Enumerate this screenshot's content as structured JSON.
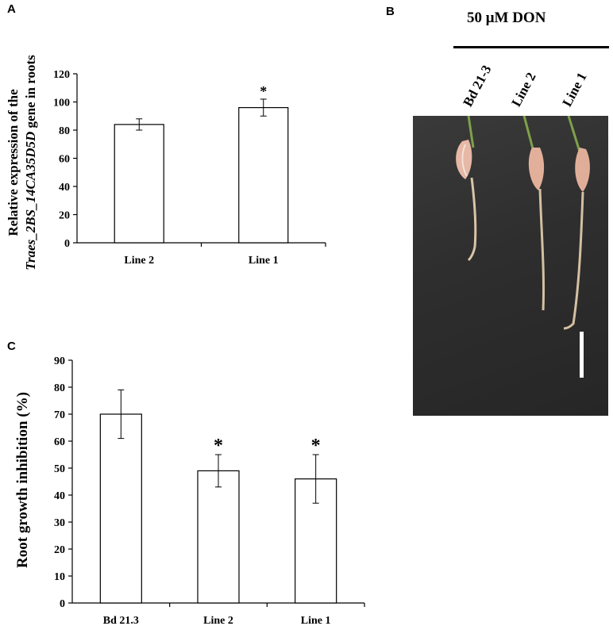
{
  "panels": {
    "a": "A",
    "b": "B",
    "c": "C"
  },
  "chart_data": [
    {
      "type": "bar",
      "panel": "A",
      "categories": [
        "Line 2",
        "Line 1"
      ],
      "values": [
        84,
        96
      ],
      "errors": [
        4,
        6
      ],
      "significance": [
        "",
        "*"
      ],
      "ylabel_line1": "Relative expression of the",
      "ylabel_line2_italic": "Traes_2BS_14CA35D5D",
      "ylabel_line2_rest": " gene in roots",
      "ylim": [
        0,
        120
      ],
      "yticks": [
        0,
        20,
        40,
        60,
        80,
        100,
        120
      ],
      "bar_color": "#ffffff",
      "grid": false
    },
    {
      "type": "bar",
      "panel": "C",
      "categories": [
        "Bd 21.3",
        "Line 2",
        "Line 1"
      ],
      "values": [
        70,
        49,
        46
      ],
      "errors": [
        9,
        6,
        9
      ],
      "significance": [
        "",
        "*",
        "*"
      ],
      "ylabel": "Root growth inhibition (%)",
      "ylim": [
        0,
        90
      ],
      "yticks": [
        0,
        10,
        20,
        30,
        40,
        50,
        60,
        70,
        80,
        90
      ],
      "bar_color": "#ffffff",
      "grid": false
    }
  ],
  "photo": {
    "treatment": "50 μM  DON",
    "lanes": [
      "Bd 21-3",
      "Line 2",
      "Line 1"
    ]
  }
}
